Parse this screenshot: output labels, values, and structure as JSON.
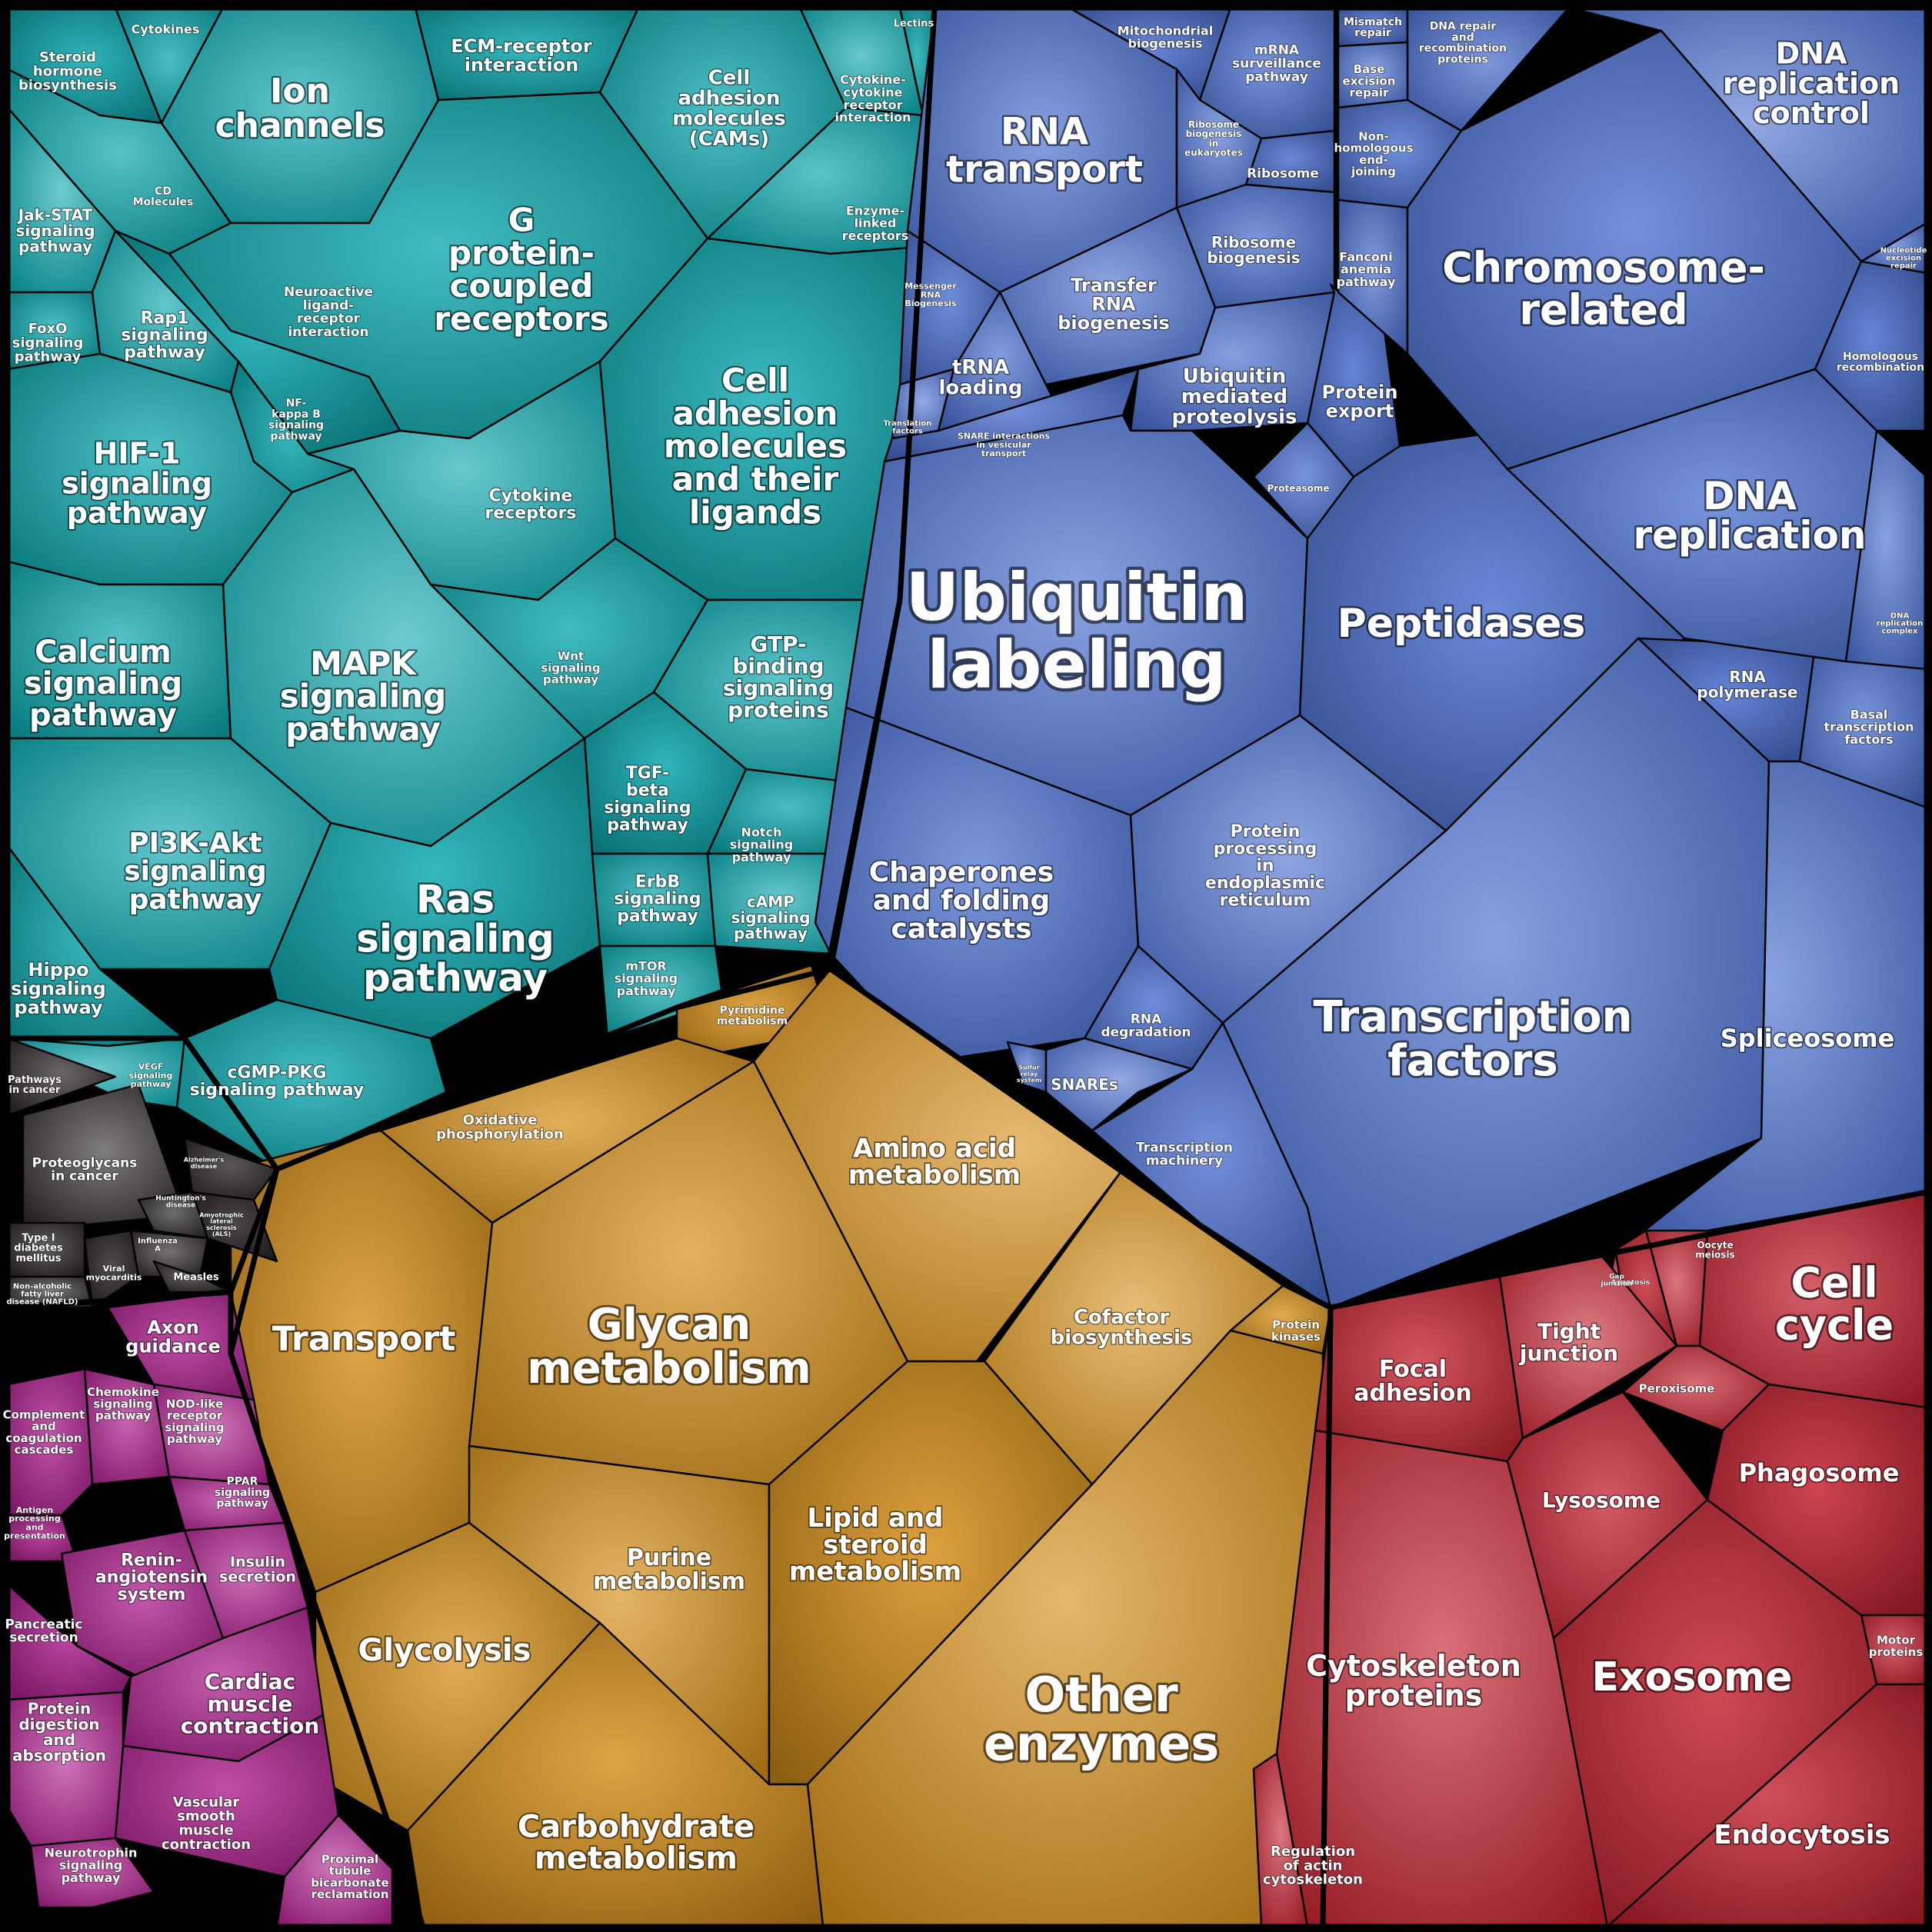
{
  "chart_data": {
    "type": "voronoi-treemap",
    "groups": [
      {
        "name": "signaling",
        "color": "#0aa8ae",
        "cells": [
          {
            "label": "Steroid hormone biosynthesis"
          },
          {
            "label": "Cytokines"
          },
          {
            "label": "Ion channels"
          },
          {
            "label": "ECM-receptor interaction"
          },
          {
            "label": "Cell adhesion molecules (CAMs)"
          },
          {
            "label": "Cytokine-cytokine receptor interaction"
          },
          {
            "label": "Lectins"
          },
          {
            "label": "CD Molecules"
          },
          {
            "label": "Jak-STAT signaling pathway"
          },
          {
            "label": "G protein-coupled receptors"
          },
          {
            "label": "Enzyme-linked receptors"
          },
          {
            "label": "Neuroactive ligand-receptor interaction"
          },
          {
            "label": "FoxO signaling pathway"
          },
          {
            "label": "Rap1 signaling pathway"
          },
          {
            "label": "NF-kappa B signaling pathway"
          },
          {
            "label": "HIF-1 signaling pathway"
          },
          {
            "label": "Cytokine receptors"
          },
          {
            "label": "Cell adhesion molecules and their ligands"
          },
          {
            "label": "Calcium signaling pathway"
          },
          {
            "label": "MAPK signaling pathway"
          },
          {
            "label": "Wnt signaling pathway"
          },
          {
            "label": "GTP-binding signaling proteins"
          },
          {
            "label": "TGF-beta signaling pathway"
          },
          {
            "label": "Notch signaling pathway"
          },
          {
            "label": "PI3K-Akt signaling pathway"
          },
          {
            "label": "Ras signaling pathway"
          },
          {
            "label": "ErbB signaling pathway"
          },
          {
            "label": "cAMP signaling pathway"
          },
          {
            "label": "Hippo signaling pathway"
          },
          {
            "label": "mTOR signaling pathway"
          },
          {
            "label": "VEGF signaling pathway"
          },
          {
            "label": "cGMP-PKG signaling pathway"
          }
        ]
      },
      {
        "name": "genetic",
        "color": "#4a6fd0",
        "cells": [
          {
            "label": "RNA transport"
          },
          {
            "label": "Mitochondrial biogenesis"
          },
          {
            "label": "mRNA surveillance pathway"
          },
          {
            "label": "Ribosome biogenesis in eukaryotes"
          },
          {
            "label": "Ribosome"
          },
          {
            "label": "Ribosome biogenesis"
          },
          {
            "label": "Transfer RNA biogenesis"
          },
          {
            "label": "Messenger RNA Biogenesis"
          },
          {
            "label": "tRNA loading"
          },
          {
            "label": "Translation factors"
          },
          {
            "label": "SNARE interactions in vesicular transport"
          },
          {
            "label": "Ubiquitin mediated proteolysis"
          },
          {
            "label": "Protein export"
          },
          {
            "label": "Proteasome"
          },
          {
            "label": "Ubiquitin labeling"
          },
          {
            "label": "Peptidases"
          },
          {
            "label": "Chaperones and folding catalysts"
          },
          {
            "label": "Protein processing in endoplasmic reticulum"
          },
          {
            "label": "RNA degradation"
          },
          {
            "label": "Sulfur relay system"
          },
          {
            "label": "SNAREs"
          },
          {
            "label": "Transcription machinery"
          },
          {
            "label": "Transcription factors"
          },
          {
            "label": "RNA polymerase"
          },
          {
            "label": "Basal transcription factors"
          },
          {
            "label": "Spliceosome"
          },
          {
            "label": "Mismatch repair"
          },
          {
            "label": "DNA repair and recombination proteins"
          },
          {
            "label": "Base excision repair"
          },
          {
            "label": "Non-homologous end-joining"
          },
          {
            "label": "Fanconi anemia pathway"
          },
          {
            "label": "DNA replication control"
          },
          {
            "label": "Chromosome-related"
          },
          {
            "label": "Nucleotide excision repair"
          },
          {
            "label": "Homologous recombination"
          },
          {
            "label": "DNA replication"
          },
          {
            "label": "DNA replication complex"
          }
        ]
      },
      {
        "name": "metabolism",
        "color": "#d7901a",
        "cells": [
          {
            "label": "Pyrimidine metabolism"
          },
          {
            "label": "Oxidative phosphorylation"
          },
          {
            "label": "Amino acid metabolism"
          },
          {
            "label": "Transport"
          },
          {
            "label": "Glycan metabolism"
          },
          {
            "label": "Cofactor biosynthesis"
          },
          {
            "label": "Protein kinases"
          },
          {
            "label": "Purine metabolism"
          },
          {
            "label": "Lipid and steroid metabolism"
          },
          {
            "label": "Glycolysis"
          },
          {
            "label": "Other enzymes"
          },
          {
            "label": "Carbohydrate metabolism"
          }
        ]
      },
      {
        "name": "cellular",
        "color": "#c42230",
        "cells": [
          {
            "label": "Cell cycle"
          },
          {
            "label": "Oocyte meiosis"
          },
          {
            "label": "Apoptosis"
          },
          {
            "label": "Gap junction"
          },
          {
            "label": "Tight junction"
          },
          {
            "label": "Focal adhesion"
          },
          {
            "label": "Peroxisome"
          },
          {
            "label": "Phagosome"
          },
          {
            "label": "Lysosome"
          },
          {
            "label": "Cytoskeleton proteins"
          },
          {
            "label": "Exosome"
          },
          {
            "label": "Motor proteins"
          },
          {
            "label": "Regulation of actin cytoskeleton"
          },
          {
            "label": "Endocytosis"
          }
        ]
      },
      {
        "name": "disease",
        "color": "#2a2526",
        "cells": [
          {
            "label": "Pathways in cancer"
          },
          {
            "label": "Proteoglycans in cancer"
          },
          {
            "label": "Alzheimer's disease"
          },
          {
            "label": "Huntington's disease"
          },
          {
            "label": "Amyotrophic lateral sclerosis (ALS)"
          },
          {
            "label": "Type I diabetes mellitus"
          },
          {
            "label": "Influenza A"
          },
          {
            "label": "Viral myocarditis"
          },
          {
            "label": "Measles"
          },
          {
            "label": "Non-alcoholic fatty liver disease (NAFLD)"
          }
        ]
      },
      {
        "name": "organismal",
        "color": "#b0208f",
        "cells": [
          {
            "label": "Axon guidance"
          },
          {
            "label": "Chemokine signaling pathway"
          },
          {
            "label": "NOD-like receptor signaling pathway"
          },
          {
            "label": "Complement and coagulation cascades"
          },
          {
            "label": "PPAR signaling pathway"
          },
          {
            "label": "Antigen processing and presentation"
          },
          {
            "label": "Renin-angiotensin system"
          },
          {
            "label": "Insulin secretion"
          },
          {
            "label": "Pancreatic secretion"
          },
          {
            "label": "Cardiac muscle contraction"
          },
          {
            "label": "Protein digestion and absorption"
          },
          {
            "label": "Vascular smooth muscle contraction"
          },
          {
            "label": "Neurotrophin signaling pathway"
          },
          {
            "label": "Proximal tubule bicarbonate reclamation"
          }
        ]
      }
    ]
  }
}
